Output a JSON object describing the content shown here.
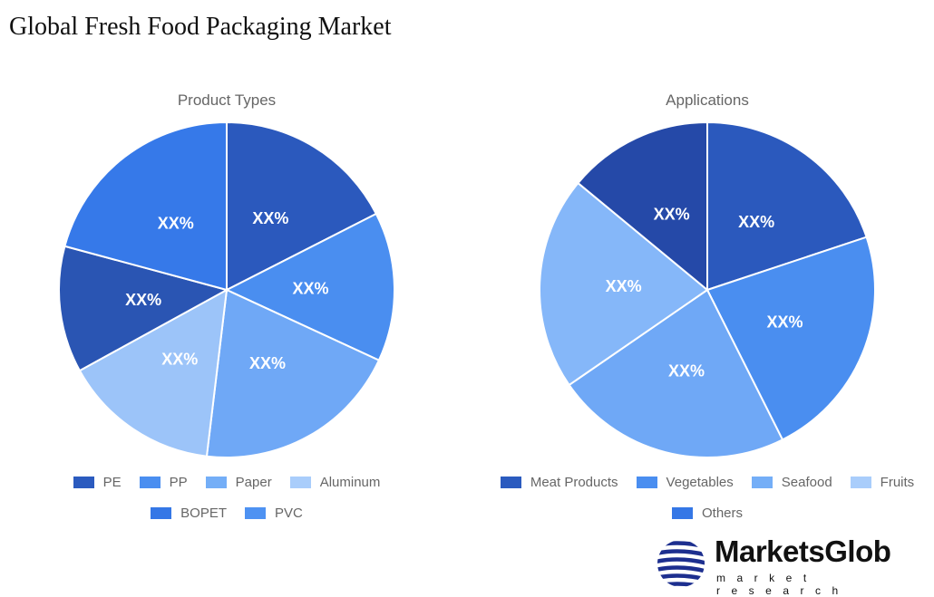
{
  "title": "Global Fresh Food Packaging Market",
  "chart_data": [
    {
      "type": "pie",
      "title": "Product Types",
      "categories": [
        "PE",
        "PP",
        "Paper",
        "Aluminum",
        "BOPET",
        "PVC"
      ],
      "values": [
        17.5,
        14.4,
        20,
        15.1,
        12.2,
        20.8
      ],
      "data_labels": [
        "XX%",
        "XX%",
        "XX%",
        "XX%",
        "XX%",
        "XX%"
      ],
      "slice_colors": [
        "#2b59bd",
        "#4a8ef0",
        "#6fa8f6",
        "#9cc4f9",
        "#2a55b3",
        "#3679e9"
      ],
      "legend_colors": [
        "#2b5bbf",
        "#4a8ef0",
        "#74aef7",
        "#a9cdfb",
        "#3577e6",
        "#4e92f2"
      ],
      "legend": "bottom"
    },
    {
      "type": "pie",
      "title": "Applications",
      "categories": [
        "Meat Products",
        "Vegetables",
        "Seafood",
        "Fruits",
        "Others"
      ],
      "values": [
        19.9,
        22.7,
        22.8,
        20.6,
        14.0
      ],
      "data_labels": [
        "XX%",
        "XX%",
        "XX%",
        "XX%",
        "XX%"
      ],
      "slice_colors": [
        "#2b59bd",
        "#4a8ef0",
        "#6fa8f6",
        "#85b7f9",
        "#2549a8"
      ],
      "legend_colors": [
        "#2b5bbf",
        "#4a8ef0",
        "#74aef7",
        "#a9cdfb",
        "#3577e6"
      ],
      "legend": "bottom"
    }
  ],
  "logo": {
    "brand": "MarketsGlob",
    "tagline": "market research"
  }
}
